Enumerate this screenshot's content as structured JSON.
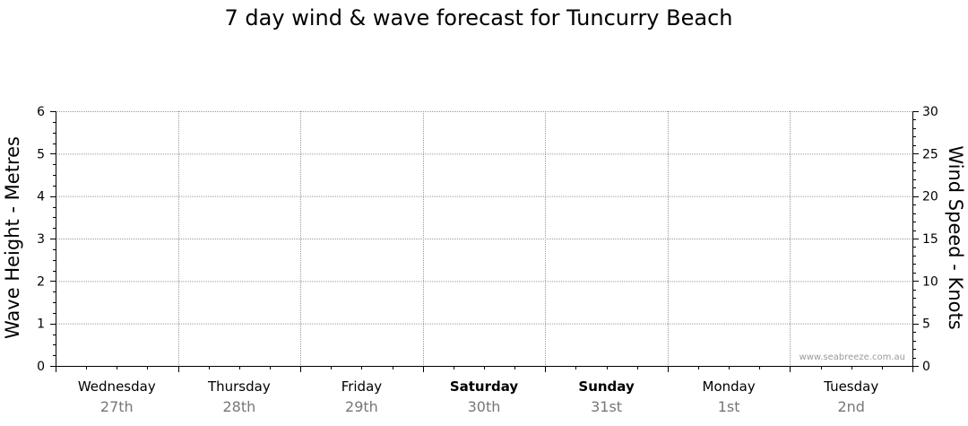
{
  "chart_data": {
    "type": "line",
    "title": "7 day wind & wave forecast for Tuncurry Beach",
    "ylabel": "Wave Height - Metres",
    "ylabel_right": "Wind Speed - Knots",
    "ylim": [
      0,
      6
    ],
    "ylim_right": [
      0,
      30
    ],
    "yticks": [
      "0",
      "1",
      "2",
      "3",
      "4",
      "5",
      "6"
    ],
    "yticks_right": [
      "0",
      "5",
      "10",
      "15",
      "20",
      "25",
      "30"
    ],
    "days": [
      {
        "name": "Wednesday",
        "date": "27th",
        "bold": false
      },
      {
        "name": "Thursday",
        "date": "28th",
        "bold": false
      },
      {
        "name": "Friday",
        "date": "29th",
        "bold": false
      },
      {
        "name": "Saturday",
        "date": "30th",
        "bold": true
      },
      {
        "name": "Sunday",
        "date": "31st",
        "bold": true
      },
      {
        "name": "Monday",
        "date": "1st",
        "bold": false
      },
      {
        "name": "Tuesday",
        "date": "2nd",
        "bold": false
      }
    ],
    "grid": true,
    "series": [],
    "watermark": "www.seabreeze.com.au"
  }
}
